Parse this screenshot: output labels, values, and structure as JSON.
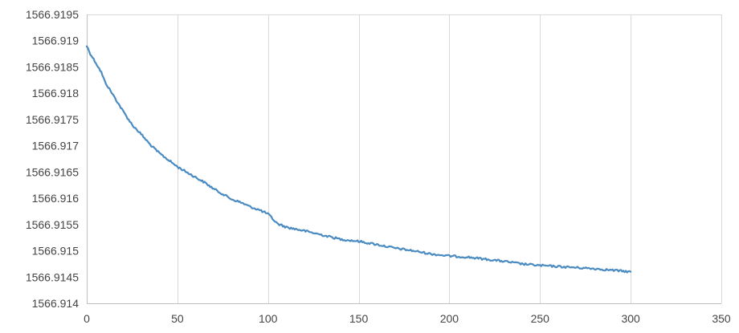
{
  "chart_data": {
    "type": "line",
    "title": "",
    "xlabel": "",
    "ylabel": "",
    "xlim": [
      0,
      350
    ],
    "ylim": [
      1566.914,
      1566.9195
    ],
    "x_ticks": [
      0,
      50,
      100,
      150,
      200,
      250,
      300,
      350
    ],
    "x_tick_labels": [
      "0",
      "50",
      "100",
      "150",
      "200",
      "250",
      "300",
      "350"
    ],
    "y_ticks": [
      1566.914,
      1566.9145,
      1566.915,
      1566.9155,
      1566.916,
      1566.9165,
      1566.917,
      1566.9175,
      1566.918,
      1566.9185,
      1566.919,
      1566.9195
    ],
    "y_tick_labels": [
      "1566.914",
      "1566.9145",
      "1566.915",
      "1566.9155",
      "1566.916",
      "1566.9165",
      "1566.917",
      "1566.9175",
      "1566.918",
      "1566.9185",
      "1566.919",
      "1566.9195"
    ],
    "grid": "vertical",
    "legend": "none",
    "colors": {
      "series": "#4a8bc2",
      "grid": "#d9d9d9",
      "axis": "#bfbfbf",
      "text": "#444444"
    },
    "series": [
      {
        "x": [
          0,
          2,
          5,
          8,
          10,
          15,
          20,
          25,
          30,
          35,
          40,
          45,
          50,
          55,
          60,
          65,
          70,
          75,
          80,
          85,
          90,
          95,
          100,
          105,
          110,
          120,
          130,
          140,
          150,
          160,
          170,
          180,
          190,
          200,
          210,
          220,
          230,
          240,
          250,
          260,
          270,
          280,
          290,
          300
        ],
        "y": [
          1566.9189,
          1566.91875,
          1566.91858,
          1566.9184,
          1566.91822,
          1566.91794,
          1566.91766,
          1566.9174,
          1566.91722,
          1566.91702,
          1566.91686,
          1566.91673,
          1566.9166,
          1566.9165,
          1566.9164,
          1566.9163,
          1566.91618,
          1566.91608,
          1566.91598,
          1566.91592,
          1566.91584,
          1566.91578,
          1566.9157,
          1566.91552,
          1566.91545,
          1566.91538,
          1566.9153,
          1566.91522,
          1566.91518,
          1566.91512,
          1566.91505,
          1566.915,
          1566.91494,
          1566.9149,
          1566.91488,
          1566.91484,
          1566.9148,
          1566.91475,
          1566.91472,
          1566.9147,
          1566.91468,
          1566.91466,
          1566.91463,
          1566.9146
        ]
      }
    ]
  }
}
